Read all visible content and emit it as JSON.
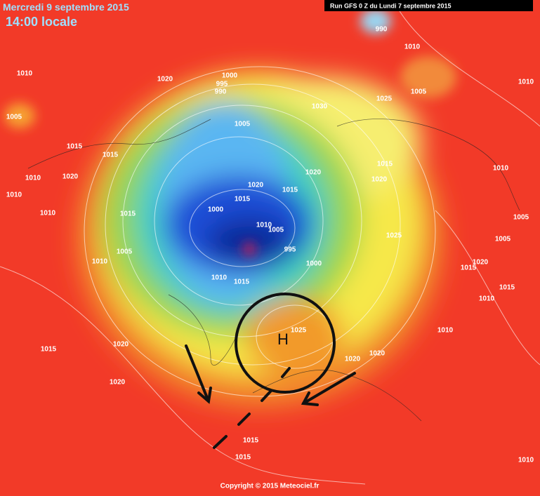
{
  "header": {
    "date": "Mercredi 9 septembre 2015",
    "time": "14:00 locale",
    "run": "Run GFS 0 Z du Lundi 7 septembre 2015"
  },
  "high_marker": "H",
  "pressure_labels": [
    "1010",
    "1020",
    "1000",
    "995",
    "990",
    "1005",
    "1005",
    "1030",
    "1025",
    "1005",
    "1010",
    "990",
    "1015",
    "1015",
    "1020",
    "1010",
    "1010",
    "1020",
    "1015",
    "1015",
    "1020",
    "1015",
    "1020",
    "1010",
    "1010",
    "1015",
    "1000",
    "1010",
    "1005",
    "995",
    "1025",
    "1005",
    "1005",
    "1005",
    "1010",
    "1000",
    "1020",
    "1015",
    "1015",
    "1010",
    "1010",
    "1015",
    "1025",
    "1010",
    "1015",
    "1020",
    "1020",
    "1020",
    "1020",
    "1015",
    "1015",
    "1010",
    "1010"
  ],
  "footer": "Copyright © 2015 Meteociel.fr"
}
